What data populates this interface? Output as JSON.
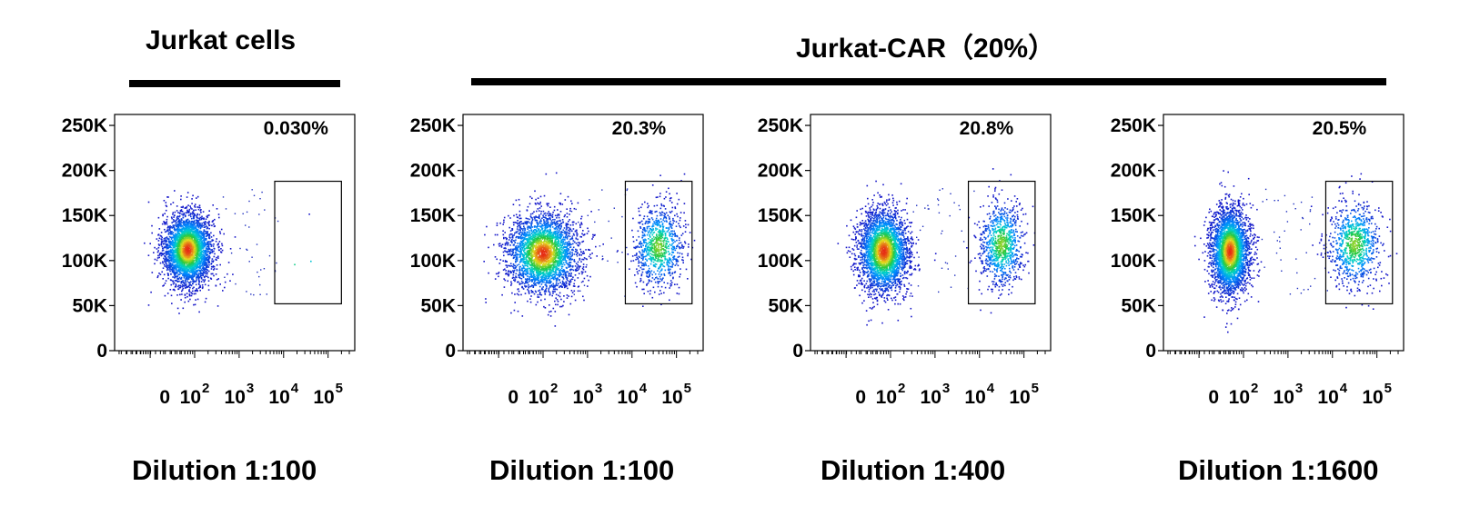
{
  "headers": [
    {
      "label": "Jurkat cells"
    },
    {
      "label": "Jurkat-CAR（20%）"
    }
  ],
  "chart_data": [
    {
      "type": "scatter",
      "caption": "Dilution 1:100",
      "gate_percent": "0.030%",
      "x_ticks": [
        {
          "base": "0",
          "exp": ""
        },
        {
          "base": "10",
          "exp": "2"
        },
        {
          "base": "10",
          "exp": "3"
        },
        {
          "base": "10",
          "exp": "4"
        },
        {
          "base": "10",
          "exp": "5"
        }
      ],
      "y_ticks": [
        "0",
        "50K",
        "100K",
        "150K",
        "200K",
        "250K"
      ],
      "ylim": [
        0,
        262144
      ],
      "gate": {
        "x_decades": [
          3.8,
          5.3
        ],
        "y": [
          52000,
          188000
        ]
      },
      "populations": [
        {
          "center_decades": 1.85,
          "center_y": 112000,
          "spread_decades": 0.28,
          "spread_y": 20000,
          "count": 3200
        },
        {
          "center_decades": 4.4,
          "center_y": 100000,
          "spread_decades": 0.25,
          "spread_y": 20000,
          "count": 3
        }
      ]
    },
    {
      "type": "scatter",
      "caption": "Dilution 1:100",
      "gate_percent": "20.3%",
      "x_ticks": [
        {
          "base": "0",
          "exp": ""
        },
        {
          "base": "10",
          "exp": "2"
        },
        {
          "base": "10",
          "exp": "3"
        },
        {
          "base": "10",
          "exp": "4"
        },
        {
          "base": "10",
          "exp": "5"
        }
      ],
      "y_ticks": [
        "0",
        "50K",
        "100K",
        "150K",
        "200K",
        "250K"
      ],
      "ylim": [
        0,
        262144
      ],
      "gate": {
        "x_decades": [
          3.85,
          5.35
        ],
        "y": [
          52000,
          188000
        ]
      },
      "populations": [
        {
          "center_decades": 2.0,
          "center_y": 108000,
          "spread_decades": 0.4,
          "spread_y": 22000,
          "count": 3000
        },
        {
          "center_decades": 4.6,
          "center_y": 115000,
          "spread_decades": 0.28,
          "spread_y": 23000,
          "count": 900
        }
      ]
    },
    {
      "type": "scatter",
      "caption": "Dilution 1:400",
      "gate_percent": "20.8%",
      "x_ticks": [
        {
          "base": "0",
          "exp": ""
        },
        {
          "base": "10",
          "exp": "2"
        },
        {
          "base": "10",
          "exp": "3"
        },
        {
          "base": "10",
          "exp": "4"
        },
        {
          "base": "10",
          "exp": "5"
        }
      ],
      "y_ticks": [
        "0",
        "50K",
        "100K",
        "150K",
        "200K",
        "250K"
      ],
      "ylim": [
        0,
        262144
      ],
      "gate": {
        "x_decades": [
          3.75,
          5.25
        ],
        "y": [
          52000,
          188000
        ]
      },
      "populations": [
        {
          "center_decades": 1.85,
          "center_y": 110000,
          "spread_decades": 0.28,
          "spread_y": 23000,
          "count": 3000
        },
        {
          "center_decades": 4.5,
          "center_y": 118000,
          "spread_decades": 0.25,
          "spread_y": 24000,
          "count": 900
        }
      ]
    },
    {
      "type": "scatter",
      "caption": "Dilution 1:1600",
      "gate_percent": "20.5%",
      "x_ticks": [
        {
          "base": "0",
          "exp": ""
        },
        {
          "base": "10",
          "exp": "2"
        },
        {
          "base": "10",
          "exp": "3"
        },
        {
          "base": "10",
          "exp": "4"
        },
        {
          "base": "10",
          "exp": "5"
        }
      ],
      "y_ticks": [
        "0",
        "50K",
        "100K",
        "150K",
        "200K",
        "250K"
      ],
      "ylim": [
        0,
        262144
      ],
      "gate": {
        "x_decades": [
          3.85,
          5.35
        ],
        "y": [
          52000,
          188000
        ]
      },
      "populations": [
        {
          "center_decades": 1.7,
          "center_y": 110000,
          "spread_decades": 0.22,
          "spread_y": 24000,
          "count": 3000
        },
        {
          "center_decades": 4.5,
          "center_y": 118000,
          "spread_decades": 0.3,
          "spread_y": 24000,
          "count": 900
        }
      ]
    }
  ]
}
